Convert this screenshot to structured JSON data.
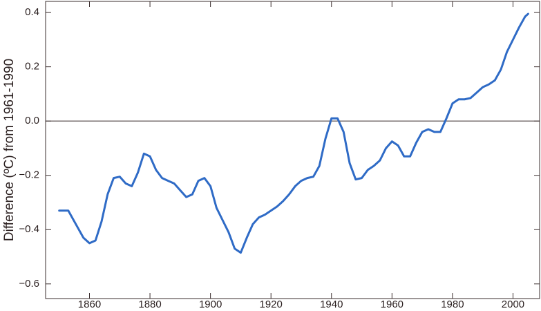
{
  "chart_data": {
    "type": "line",
    "y_label": "Difference (ºC) from 1961-1990",
    "x": [
      1850,
      1853,
      1856,
      1858,
      1860,
      1862,
      1864,
      1866,
      1868,
      1870,
      1872,
      1874,
      1876,
      1878,
      1880,
      1882,
      1884,
      1886,
      1888,
      1890,
      1892,
      1894,
      1896,
      1898,
      1900,
      1902,
      1904,
      1906,
      1908,
      1910,
      1912,
      1914,
      1916,
      1918,
      1920,
      1922,
      1924,
      1926,
      1928,
      1930,
      1932,
      1934,
      1936,
      1938,
      1940,
      1942,
      1944,
      1946,
      1948,
      1950,
      1952,
      1954,
      1956,
      1958,
      1960,
      1962,
      1964,
      1966,
      1968,
      1970,
      1972,
      1974,
      1976,
      1978,
      1980,
      1982,
      1984,
      1986,
      1988,
      1990,
      1992,
      1994,
      1996,
      1998,
      2000,
      2002,
      2004,
      2005
    ],
    "series": [
      {
        "color": "#2f6bc6",
        "values": [
          -0.33,
          -0.33,
          -0.39,
          -0.43,
          -0.45,
          -0.44,
          -0.37,
          -0.27,
          -0.21,
          -0.205,
          -0.23,
          -0.24,
          -0.19,
          -0.12,
          -0.13,
          -0.18,
          -0.21,
          -0.22,
          -0.23,
          -0.255,
          -0.28,
          -0.27,
          -0.22,
          -0.21,
          -0.24,
          -0.32,
          -0.365,
          -0.41,
          -0.47,
          -0.485,
          -0.43,
          -0.38,
          -0.355,
          -0.345,
          -0.33,
          -0.315,
          -0.295,
          -0.27,
          -0.24,
          -0.22,
          -0.21,
          -0.205,
          -0.165,
          -0.065,
          0.01,
          0.01,
          -0.04,
          -0.155,
          -0.215,
          -0.21,
          -0.18,
          -0.165,
          -0.145,
          -0.1,
          -0.075,
          -0.09,
          -0.13,
          -0.13,
          -0.08,
          -0.04,
          -0.03,
          -0.04,
          -0.04,
          0.01,
          0.065,
          0.08,
          0.08,
          0.085,
          0.105,
          0.125,
          0.135,
          0.15,
          0.19,
          0.255,
          0.3,
          0.345,
          0.385,
          0.395
        ]
      }
    ],
    "xlim": [
      1845.5,
      2008.8
    ],
    "xticks": [
      1860,
      1880,
      1900,
      1920,
      1940,
      1960,
      1980,
      2000
    ],
    "ylim": [
      -0.654,
      0.441
    ],
    "yticks": [
      {
        "value": -0.6,
        "label": "−0.6"
      },
      {
        "value": -0.4,
        "label": "−0.4"
      },
      {
        "value": -0.2,
        "label": "−0.2"
      },
      {
        "value": 0,
        "label": "0.0"
      },
      0.2,
      0.4
    ],
    "zero_line": true
  }
}
